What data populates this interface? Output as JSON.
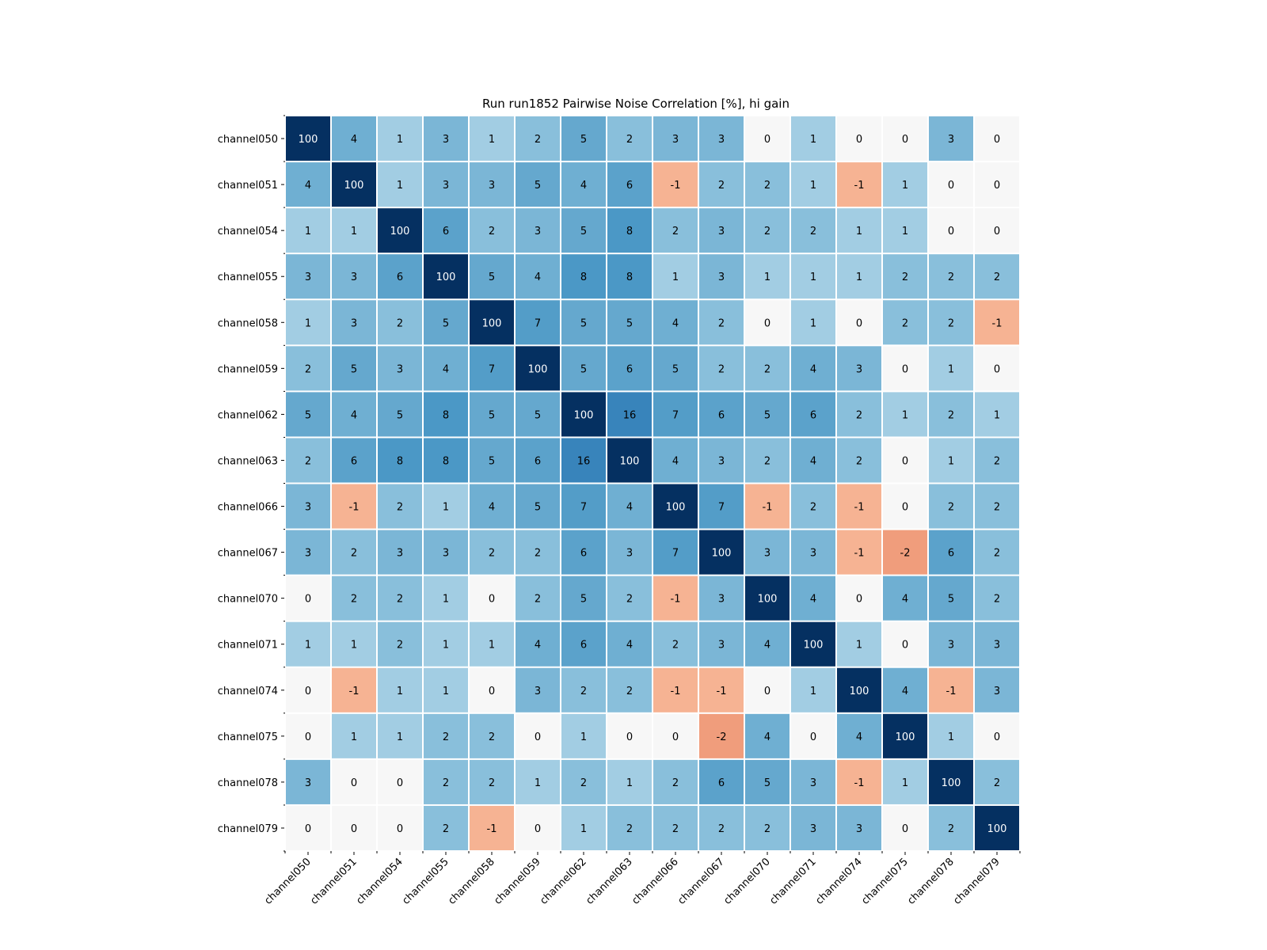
{
  "chart_data": {
    "type": "heatmap",
    "title": "Run run1852 Pairwise Noise Correlation [%], hi gain",
    "x_labels": [
      "channel050",
      "channel051",
      "channel054",
      "channel055",
      "channel058",
      "channel059",
      "channel062",
      "channel063",
      "channel066",
      "channel067",
      "channel070",
      "channel071",
      "channel074",
      "channel075",
      "channel078",
      "channel079"
    ],
    "y_labels": [
      "channel050",
      "channel051",
      "channel054",
      "channel055",
      "channel058",
      "channel059",
      "channel062",
      "channel063",
      "channel066",
      "channel067",
      "channel070",
      "channel071",
      "channel074",
      "channel075",
      "channel078",
      "channel079"
    ],
    "values": [
      [
        100,
        4,
        1,
        3,
        1,
        2,
        5,
        2,
        3,
        3,
        0,
        1,
        0,
        0,
        3,
        0
      ],
      [
        4,
        100,
        1,
        3,
        3,
        5,
        4,
        6,
        -1,
        2,
        2,
        1,
        -1,
        1,
        0,
        0
      ],
      [
        1,
        1,
        100,
        6,
        2,
        3,
        5,
        8,
        2,
        3,
        2,
        2,
        1,
        1,
        0,
        0
      ],
      [
        3,
        3,
        6,
        100,
        5,
        4,
        8,
        8,
        1,
        3,
        1,
        1,
        1,
        2,
        2,
        2
      ],
      [
        1,
        3,
        2,
        5,
        100,
        7,
        5,
        5,
        4,
        2,
        0,
        1,
        0,
        2,
        2,
        -1
      ],
      [
        2,
        5,
        3,
        4,
        7,
        100,
        5,
        6,
        5,
        2,
        2,
        4,
        3,
        0,
        1,
        0
      ],
      [
        5,
        4,
        5,
        8,
        5,
        5,
        100,
        16,
        7,
        6,
        5,
        6,
        2,
        1,
        2,
        1
      ],
      [
        2,
        6,
        8,
        8,
        5,
        6,
        16,
        100,
        4,
        3,
        2,
        4,
        2,
        0,
        1,
        2
      ],
      [
        3,
        -1,
        2,
        1,
        4,
        5,
        7,
        4,
        100,
        7,
        -1,
        2,
        -1,
        0,
        2,
        2
      ],
      [
        3,
        2,
        3,
        3,
        2,
        2,
        6,
        3,
        7,
        100,
        3,
        3,
        -1,
        -2,
        6,
        2
      ],
      [
        0,
        2,
        2,
        1,
        0,
        2,
        5,
        2,
        -1,
        3,
        100,
        4,
        0,
        4,
        5,
        2
      ],
      [
        1,
        1,
        2,
        1,
        1,
        4,
        6,
        4,
        2,
        3,
        4,
        100,
        1,
        0,
        3,
        3
      ],
      [
        0,
        -1,
        1,
        1,
        0,
        3,
        2,
        2,
        -1,
        -1,
        0,
        1,
        100,
        4,
        -1,
        3
      ],
      [
        0,
        1,
        1,
        2,
        2,
        0,
        1,
        0,
        0,
        -2,
        4,
        0,
        4,
        100,
        1,
        0
      ],
      [
        3,
        0,
        0,
        2,
        2,
        1,
        2,
        1,
        2,
        6,
        5,
        3,
        -1,
        1,
        100,
        2
      ],
      [
        0,
        0,
        0,
        2,
        -1,
        0,
        1,
        2,
        2,
        2,
        2,
        3,
        3,
        0,
        2,
        100
      ]
    ],
    "colormap": "diverging red-white-blue",
    "colors": {
      "high": "#08306b",
      "mid": "#f7f7f7",
      "low": "#b2182b"
    },
    "legend": "none",
    "grid": false
  }
}
